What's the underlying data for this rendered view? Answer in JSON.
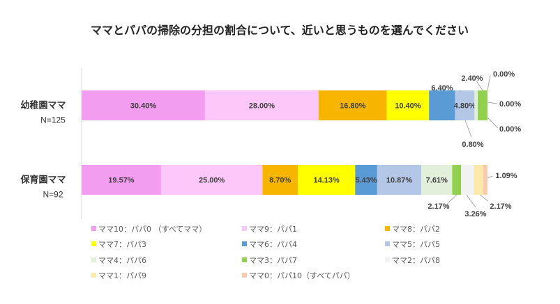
{
  "chart_data": {
    "type": "bar",
    "orientation": "horizontal",
    "stacked": true,
    "percent": true,
    "title": "ママとパパの掃除の分担の割合について、近いと思うものを選んでください",
    "categories": [
      {
        "name": "幼稚園ママ",
        "n": "N=125"
      },
      {
        "name": "保育園ママ",
        "n": "N=92"
      }
    ],
    "series": [
      {
        "name": "ママ10：パパ0 （すべてママ）",
        "color": "#f39df1",
        "values": [
          30.4,
          19.57
        ],
        "labels": [
          "30.40%",
          "19.57%"
        ]
      },
      {
        "name": "ママ9：パパ1",
        "color": "#fdc8f9",
        "values": [
          28.0,
          25.0
        ],
        "labels": [
          "28.00%",
          "25.00%"
        ]
      },
      {
        "name": "ママ8：パパ2",
        "color": "#f8b500",
        "values": [
          16.8,
          8.7
        ],
        "labels": [
          "16.80%",
          "8.70%"
        ]
      },
      {
        "name": "ママ7：パパ3",
        "color": "#ffff00",
        "values": [
          10.4,
          14.13
        ],
        "labels": [
          "10.40%",
          "14.13%"
        ]
      },
      {
        "name": "ママ6：パパ4",
        "color": "#5b9bd5",
        "values": [
          6.4,
          5.43
        ],
        "labels": [
          "6.40%",
          "5.43%"
        ]
      },
      {
        "name": "ママ5：パパ5",
        "color": "#b4c7e7",
        "values": [
          4.8,
          10.87
        ],
        "labels": [
          "4.80%",
          "10.87%"
        ]
      },
      {
        "name": "ママ4：パパ6",
        "color": "#e2efda",
        "values": [
          0.8,
          7.61
        ],
        "labels": [
          "0.80%",
          "7.61%"
        ]
      },
      {
        "name": "ママ3：パパ7",
        "color": "#92d050",
        "values": [
          2.4,
          2.17
        ],
        "labels": [
          "2.40%",
          "2.17%"
        ]
      },
      {
        "name": "ママ2：パパ8",
        "color": "#f2f2f2",
        "values": [
          0.0,
          3.26
        ],
        "labels": [
          "0.00%",
          "3.26%"
        ]
      },
      {
        "name": "ママ1：パパ9",
        "color": "#fde9a9",
        "values": [
          0.0,
          2.17
        ],
        "labels": [
          "0.00%",
          "2.17%"
        ]
      },
      {
        "name": "ママ0：パパ10（すべてパパ）",
        "color": "#f8cbad",
        "values": [
          0.0,
          1.09
        ],
        "labels": [
          "0.00%",
          "1.09%"
        ]
      }
    ],
    "xlim": [
      0,
      100
    ],
    "grid": false,
    "legend": "bottom"
  }
}
